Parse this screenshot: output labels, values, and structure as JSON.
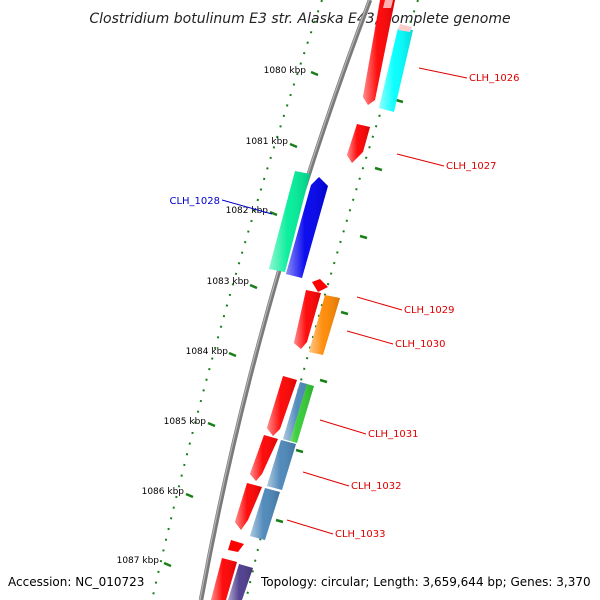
{
  "title": "Clostridium botulinum E3 str. Alaska E43, complete genome",
  "footer": {
    "accession": "Accession: NC_010723",
    "topology": "Topology: circular; Length: 3,659,644 bp; Genes: 3,370"
  },
  "colors": {
    "backbone": "#808080",
    "tick": "#1a7f1a",
    "label_red": "#e00000",
    "label_blue": "#0000cc"
  },
  "scale_labels": [
    "1080 kbp",
    "1081 kbp",
    "1082 kbp",
    "1083 kbp",
    "1084 kbp",
    "1085 kbp",
    "1086 kbp",
    "1087 kbp"
  ],
  "gene_labels": [
    {
      "name": "CLH_1026",
      "color": "#e00000"
    },
    {
      "name": "CLH_1027",
      "color": "#e00000"
    },
    {
      "name": "CLH_1028",
      "color": "#0000cc"
    },
    {
      "name": "CLH_1029",
      "color": "#e00000"
    },
    {
      "name": "CLH_1030",
      "color": "#e00000"
    },
    {
      "name": "CLH_1031",
      "color": "#e00000"
    },
    {
      "name": "CLH_1032",
      "color": "#e00000"
    },
    {
      "name": "CLH_1033",
      "color": "#e00000"
    }
  ],
  "features": [
    {
      "id": "f1",
      "color": "#ff0000",
      "strand": "+"
    },
    {
      "id": "f2",
      "color": "#00ffff",
      "strand": "+"
    },
    {
      "id": "f3",
      "color": "#ff0000",
      "strand": "+"
    },
    {
      "id": "f4",
      "color": "#00ee99",
      "strand": "-"
    },
    {
      "id": "f5",
      "color": "#0000ee",
      "strand": "-"
    },
    {
      "id": "f6",
      "color": "#ff0000",
      "strand": "+"
    },
    {
      "id": "f7",
      "color": "#ff0000",
      "strand": "+"
    },
    {
      "id": "f8",
      "color": "#ff8800",
      "strand": "+"
    },
    {
      "id": "f9",
      "color": "#ff0000",
      "strand": "+"
    },
    {
      "id": "f10",
      "color": "#4a86b8",
      "strand": "+"
    },
    {
      "id": "f11",
      "color": "#33cc33",
      "strand": "+"
    },
    {
      "id": "f12",
      "color": "#ff0000",
      "strand": "+"
    },
    {
      "id": "f13",
      "color": "#4a86b8",
      "strand": "+"
    },
    {
      "id": "f14",
      "color": "#ff0000",
      "strand": "+"
    },
    {
      "id": "f15",
      "color": "#4a86b8",
      "strand": "+"
    },
    {
      "id": "f16",
      "color": "#ff0000",
      "strand": "+"
    },
    {
      "id": "f17",
      "color": "#ff0000",
      "strand": "+"
    },
    {
      "id": "f18",
      "color": "#4b3a8c",
      "strand": "+"
    }
  ]
}
